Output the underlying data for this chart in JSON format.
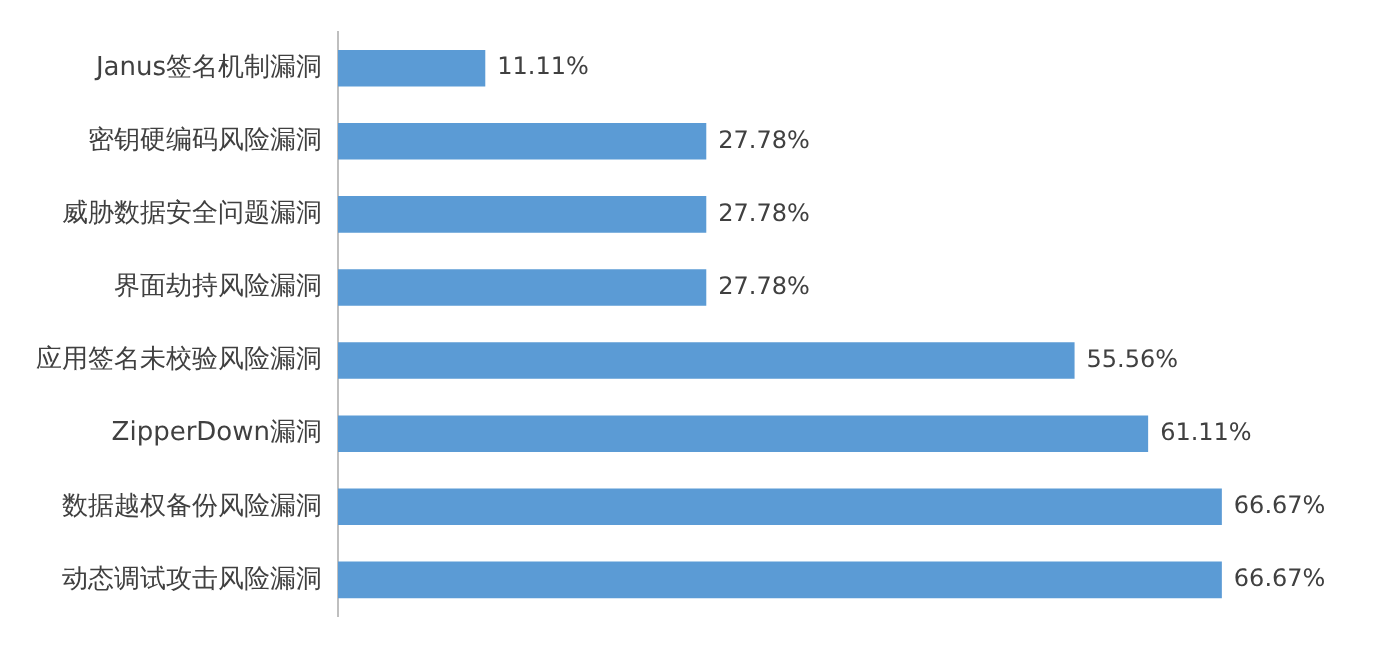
{
  "chart_data": {
    "type": "bar",
    "orientation": "horizontal",
    "categories": [
      "Janus签名机制漏洞",
      "密钥硬编码风险漏洞",
      "威胁数据安全问题漏洞",
      "界面劫持风险漏洞",
      "应用签名未校验风险漏洞",
      "ZipperDown漏洞",
      "数据越权备份风险漏洞",
      "动态调试攻击风险漏洞"
    ],
    "values": [
      11.11,
      27.78,
      27.78,
      27.78,
      55.56,
      61.11,
      66.67,
      66.67
    ],
    "value_labels": [
      "11.11%",
      "27.78%",
      "27.78%",
      "27.78%",
      "55.56%",
      "61.11%",
      "66.67%",
      "66.67%"
    ],
    "color": "#5b9bd5",
    "grid": false,
    "legend": false
  }
}
